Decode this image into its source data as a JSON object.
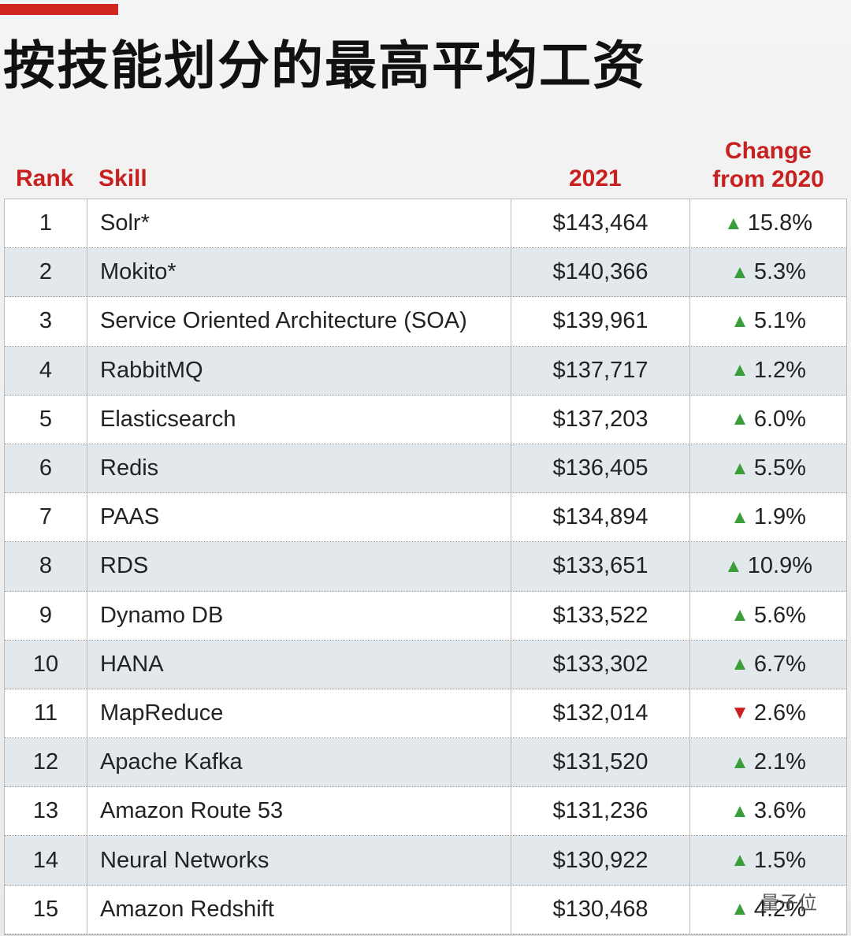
{
  "title": "按技能划分的最高平均工资",
  "table": {
    "headers": {
      "rank": "Rank",
      "skill": "Skill",
      "salary": "2021",
      "change": "Change from 2020"
    },
    "rows": [
      {
        "rank": 1,
        "skill": "Solr*",
        "salary": "$143,464",
        "change": "15.8%",
        "trend": "up"
      },
      {
        "rank": 2,
        "skill": "Mokito*",
        "salary": "$140,366",
        "change": "5.3%",
        "trend": "up"
      },
      {
        "rank": 3,
        "skill": "Service Oriented Architecture (SOA)",
        "salary": "$139,961",
        "change": "5.1%",
        "trend": "up"
      },
      {
        "rank": 4,
        "skill": "RabbitMQ",
        "salary": "$137,717",
        "change": "1.2%",
        "trend": "up"
      },
      {
        "rank": 5,
        "skill": "Elasticsearch",
        "salary": "$137,203",
        "change": "6.0%",
        "trend": "up"
      },
      {
        "rank": 6,
        "skill": "Redis",
        "salary": "$136,405",
        "change": "5.5%",
        "trend": "up"
      },
      {
        "rank": 7,
        "skill": "PAAS",
        "salary": "$134,894",
        "change": "1.9%",
        "trend": "up"
      },
      {
        "rank": 8,
        "skill": "RDS",
        "salary": "$133,651",
        "change": "10.9%",
        "trend": "up"
      },
      {
        "rank": 9,
        "skill": "Dynamo DB",
        "salary": "$133,522",
        "change": "5.6%",
        "trend": "up"
      },
      {
        "rank": 10,
        "skill": "HANA",
        "salary": "$133,302",
        "change": "6.7%",
        "trend": "up"
      },
      {
        "rank": 11,
        "skill": "MapReduce",
        "salary": "$132,014",
        "change": "2.6%",
        "trend": "down"
      },
      {
        "rank": 12,
        "skill": "Apache Kafka",
        "salary": "$131,520",
        "change": "2.1%",
        "trend": "up"
      },
      {
        "rank": 13,
        "skill": "Amazon Route 53",
        "salary": "$131,236",
        "change": "3.6%",
        "trend": "up"
      },
      {
        "rank": 14,
        "skill": "Neural Networks",
        "salary": "$130,922",
        "change": "1.5%",
        "trend": "up"
      },
      {
        "rank": 15,
        "skill": "Amazon Redshift",
        "salary": "$130,468",
        "change": "4.2%",
        "trend": "up"
      }
    ]
  },
  "watermark": "量子位"
}
